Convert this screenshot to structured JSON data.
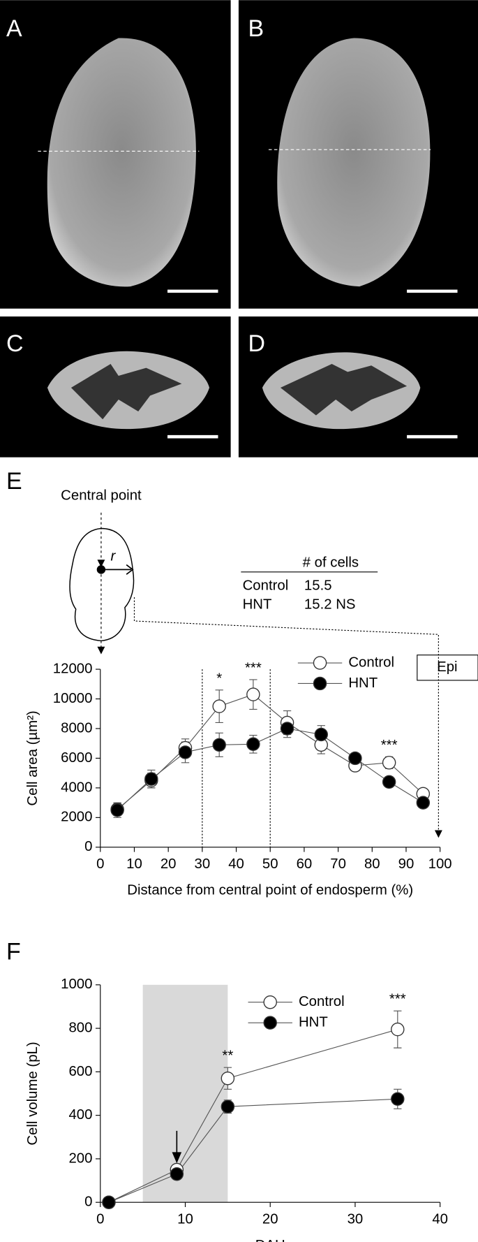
{
  "panel_labels": [
    "A",
    "B",
    "C",
    "D",
    "E",
    "F"
  ],
  "inset_diagram": {
    "label": "Central point",
    "radius_label": "r",
    "box_label": "Epi"
  },
  "inset_table": {
    "header": "# of cells",
    "rows": [
      [
        "Control",
        "15.5"
      ],
      [
        "HNT",
        "15.2 NS"
      ]
    ]
  },
  "chart_data": [
    {
      "type": "line",
      "xlabel": "Distance from central point of endosperm (%)",
      "ylabel": "Cell area (µm²)",
      "x": [
        5,
        15,
        25,
        35,
        45,
        55,
        65,
        75,
        85,
        95
      ],
      "series": [
        {
          "name": "Control",
          "color": "#ffffff",
          "values": [
            2550,
            4500,
            6700,
            9500,
            10300,
            8400,
            6900,
            5500,
            5700,
            3600
          ],
          "errors": [
            400,
            500,
            600,
            1100,
            1000,
            800,
            600,
            300,
            400,
            300
          ]
        },
        {
          "name": "HNT",
          "color": "#000000",
          "values": [
            2500,
            4600,
            6400,
            6900,
            6950,
            8000,
            7600,
            6000,
            4400,
            3000
          ],
          "errors": [
            500,
            600,
            700,
            800,
            600,
            600,
            600,
            300,
            300,
            300
          ]
        }
      ],
      "xlim": [
        0,
        100
      ],
      "xticks": [
        0,
        10,
        20,
        30,
        40,
        50,
        60,
        70,
        80,
        90,
        100
      ],
      "ylim": [
        0,
        12000
      ],
      "yticks": [
        0,
        2000,
        4000,
        6000,
        8000,
        10000,
        12000
      ],
      "vlines": [
        30,
        50
      ],
      "annotations": [
        {
          "x": 35,
          "text": "*"
        },
        {
          "x": 45,
          "text": "***"
        },
        {
          "x": 85,
          "text": "***"
        }
      ]
    },
    {
      "type": "line",
      "xlabel": "DAH",
      "ylabel": "Cell volume (pL)",
      "x": [
        1,
        9,
        15,
        35
      ],
      "series": [
        {
          "name": "Control",
          "color": "#ffffff",
          "values": [
            0,
            150,
            570,
            795
          ],
          "errors": [
            0,
            15,
            50,
            85
          ]
        },
        {
          "name": "HNT",
          "color": "#000000",
          "values": [
            0,
            130,
            440,
            475
          ],
          "errors": [
            0,
            15,
            30,
            45
          ]
        }
      ],
      "xlim": [
        0,
        40
      ],
      "xticks": [
        0,
        10,
        20,
        30,
        40
      ],
      "ylim": [
        0,
        1000
      ],
      "yticks": [
        0,
        200,
        400,
        600,
        800,
        1000
      ],
      "shade": [
        5,
        15
      ],
      "arrow_x": 9,
      "annotations": [
        {
          "x": 15,
          "text": "**"
        },
        {
          "x": 35,
          "text": "***"
        }
      ]
    }
  ]
}
